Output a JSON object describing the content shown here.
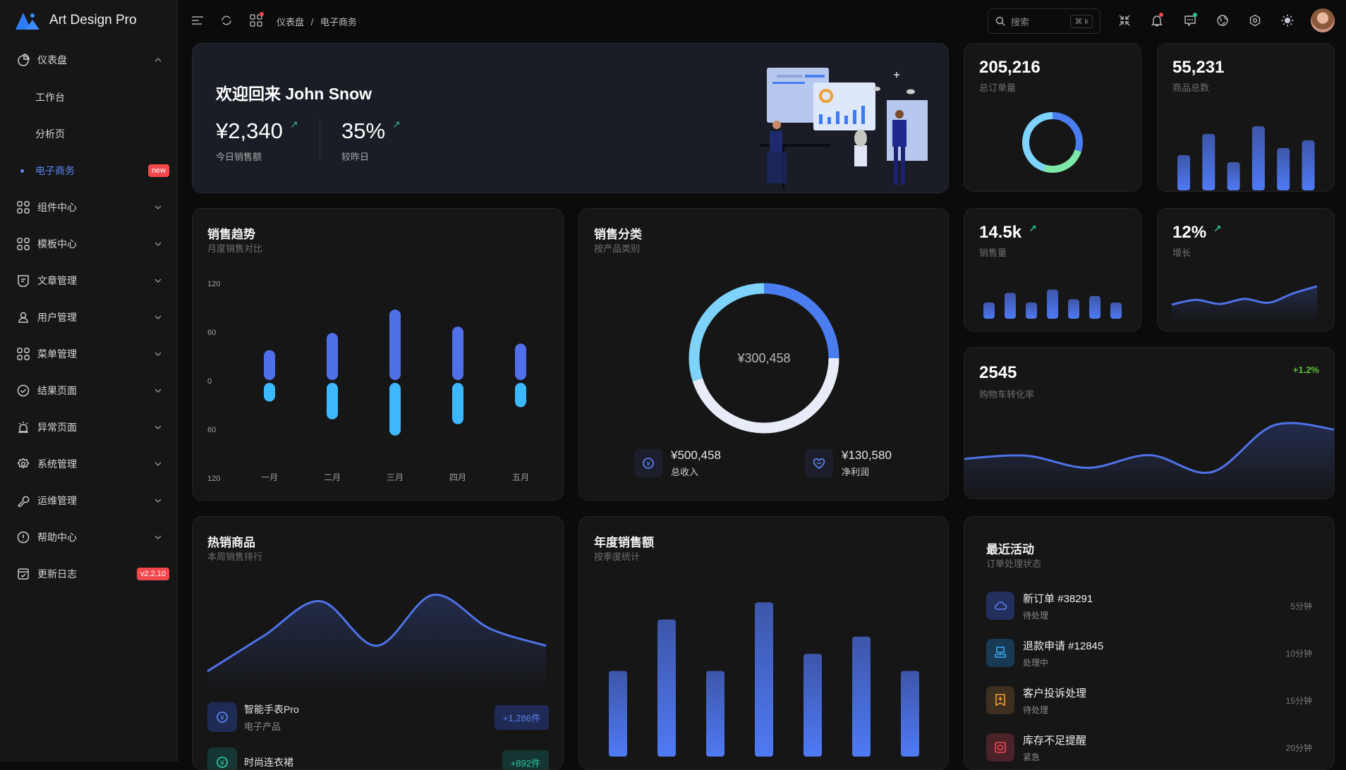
{
  "app": {
    "name": "Art Design Pro"
  },
  "sidebar": {
    "items": [
      {
        "label": "仪表盘",
        "icon": "pie-chart-icon",
        "expanded": true
      },
      {
        "label": "工作台"
      },
      {
        "label": "分析页"
      },
      {
        "label": "电子商务",
        "badge": "new",
        "active": true
      },
      {
        "label": "组件中心",
        "icon": "components-icon"
      },
      {
        "label": "模板中心",
        "icon": "template-icon"
      },
      {
        "label": "文章管理",
        "icon": "article-icon"
      },
      {
        "label": "用户管理",
        "icon": "users-icon"
      },
      {
        "label": "菜单管理",
        "icon": "menu-grid-icon"
      },
      {
        "label": "结果页面",
        "icon": "check-circle-icon"
      },
      {
        "label": "异常页面",
        "icon": "alarm-icon"
      },
      {
        "label": "系统管理",
        "icon": "gear-icon"
      },
      {
        "label": "运维管理",
        "icon": "wrench-icon"
      },
      {
        "label": "帮助中心",
        "icon": "info-circle-icon"
      },
      {
        "label": "更新日志",
        "icon": "calendar-check-icon",
        "badge": "v2.2.10"
      }
    ]
  },
  "header": {
    "breadcrumb": [
      "仪表盘",
      "电子商务"
    ],
    "breadcrumb_sep": "/",
    "search_placeholder": "搜索",
    "search_shortcut": "⌘ k"
  },
  "welcome": {
    "title": "欢迎回来 John Snow",
    "stats": [
      {
        "value": "¥2,340",
        "label": "今日销售额",
        "trend": "↗"
      },
      {
        "value": "35%",
        "label": "较昨日",
        "trend": "↗"
      }
    ]
  },
  "kpis": {
    "orders": {
      "value": "205,216",
      "label": "总订单量"
    },
    "products": {
      "value": "55,231",
      "label": "商品总数"
    },
    "sales": {
      "value": "14.5k",
      "label": "销售量",
      "trend": "↗"
    },
    "growth": {
      "value": "12%",
      "label": "增长",
      "trend": "↗"
    },
    "cart": {
      "value": "2545",
      "label": "购物车转化率",
      "change": "+1.2%"
    }
  },
  "sales_trend": {
    "title": "销售趋势",
    "subtitle": "月度销售对比"
  },
  "sales_category": {
    "title": "销售分类",
    "subtitle": "按产品类别",
    "center": "¥300,458",
    "stats": [
      {
        "value": "¥500,458",
        "label": "总收入",
        "icon": "yen-refresh-icon"
      },
      {
        "value": "¥130,580",
        "label": "净利润",
        "icon": "heart-smile-icon"
      }
    ]
  },
  "hot_products": {
    "title": "热销商品",
    "subtitle": "本周销售排行",
    "items": [
      {
        "name": "智能手表Pro",
        "category": "电子产品",
        "count": "+1,286件",
        "color": "#5b7ff0",
        "bg": "#1f2b55"
      },
      {
        "name": "时尚连衣裙",
        "count": "+892件",
        "color": "#2ec4a0",
        "bg": "#163634"
      }
    ]
  },
  "annual_sales": {
    "title": "年度销售额",
    "subtitle": "按季度统计"
  },
  "recent": {
    "title": "最近活动",
    "subtitle": "订单处理状态",
    "items": [
      {
        "title": "新订单 #38291",
        "status": "待处理",
        "time": "5分钟",
        "icon": "cloud-icon",
        "color": "#5b7ff0",
        "bg": "#24305c"
      },
      {
        "title": "退款申请 #12845",
        "status": "处理中",
        "time": "10分钟",
        "icon": "monitor-icon",
        "color": "#3aa8f0",
        "bg": "#183a55"
      },
      {
        "title": "客户投诉处理",
        "status": "待处理",
        "time": "15分钟",
        "icon": "bookmark-plus-icon",
        "color": "#f0a030",
        "bg": "#3e3020"
      },
      {
        "title": "库存不足提醒",
        "status": "紧急",
        "time": "20分钟",
        "icon": "camera-icon",
        "color": "#f04a55",
        "bg": "#4a2228"
      }
    ]
  },
  "chart_data": [
    {
      "type": "bar",
      "title": "销售趋势",
      "categories": [
        "一月",
        "二月",
        "三月",
        "四月",
        "五月"
      ],
      "yticks": [
        "120",
        "60",
        "0",
        "60",
        "120"
      ],
      "ylim": [
        -120,
        120
      ],
      "series": [
        {
          "name": "up",
          "values": [
            37,
            58,
            87,
            66,
            45
          ],
          "color": "#4f70e8"
        },
        {
          "name": "down",
          "values": [
            -23,
            -45,
            -65,
            -51,
            -30
          ],
          "color": "#3db8ff"
        }
      ]
    },
    {
      "type": "pie",
      "title": "销售分类",
      "values": [
        25,
        45,
        30
      ],
      "colors": [
        "#4a7ef0",
        "#e8ecf8",
        "#7dd3fc"
      ]
    },
    {
      "type": "pie",
      "title": "总订单量",
      "values": [
        30,
        25,
        45
      ],
      "colors": [
        "#4a7ef0",
        "#7ee8a8",
        "#7dd3fc"
      ]
    },
    {
      "type": "bar",
      "title": "商品总数",
      "values": [
        55,
        88,
        44,
        100,
        66,
        78
      ],
      "ylim": [
        0,
        100
      ]
    },
    {
      "type": "bar",
      "title": "销售量",
      "values": [
        50,
        80,
        50,
        90,
        60,
        70,
        50
      ],
      "ylim": [
        0,
        100
      ]
    },
    {
      "type": "area",
      "title": "增长",
      "values": [
        20,
        35,
        22,
        38,
        26,
        55,
        78
      ],
      "ylim": [
        0,
        100
      ]
    },
    {
      "type": "area",
      "title": "购物车转化率",
      "values": [
        40,
        45,
        25,
        46,
        18,
        95,
        88
      ],
      "ylim": [
        0,
        100
      ]
    },
    {
      "type": "area",
      "title": "热销商品",
      "values": [
        7,
        46,
        84,
        35,
        91,
        54,
        35
      ],
      "ylim": [
        0,
        100
      ]
    },
    {
      "type": "bar",
      "title": "年度销售额",
      "values": [
        50,
        80,
        50,
        90,
        60,
        70,
        50
      ],
      "ylim": [
        0,
        100
      ]
    }
  ]
}
